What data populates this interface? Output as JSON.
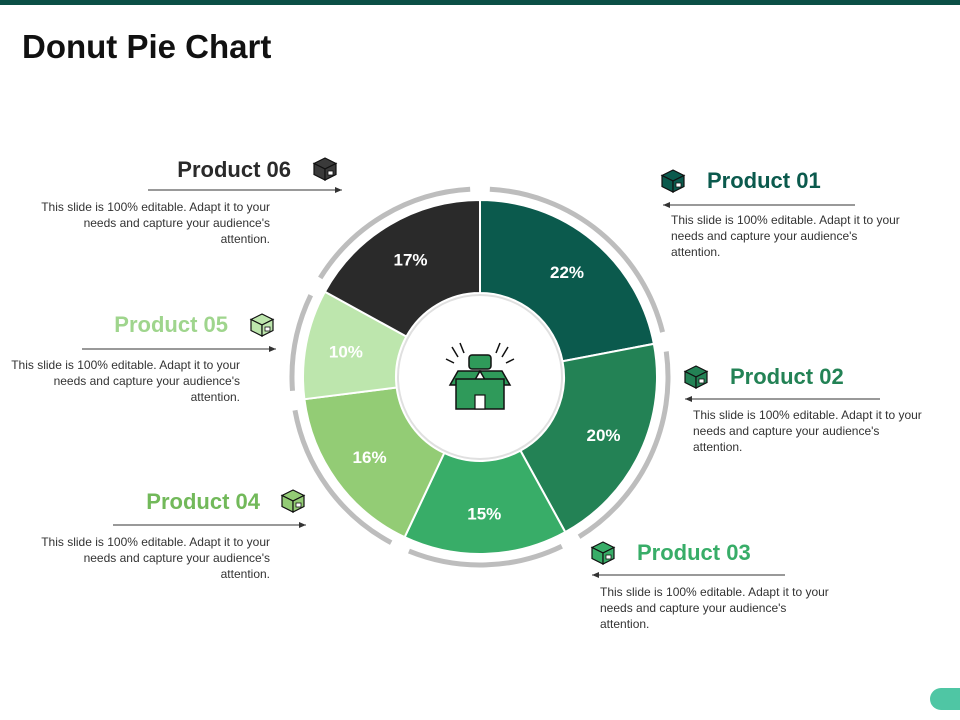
{
  "title": "Donut Pie Chart",
  "colors": {
    "top_bar": "#0b4f46",
    "title_text": "#111111",
    "ring": "#bdbdbd",
    "center_icon": "#2f9a5a"
  },
  "chart_data": {
    "type": "pie",
    "title": "",
    "categories": [
      "Product 01",
      "Product 02",
      "Product 03",
      "Product 04",
      "Product 05",
      "Product 06"
    ],
    "values": [
      22,
      20,
      15,
      16,
      10,
      17
    ],
    "value_labels": [
      "22%",
      "20%",
      "15%",
      "16%",
      "10%",
      "17%"
    ],
    "colors": [
      "#0b5a4d",
      "#238255",
      "#38ad68",
      "#93cc75",
      "#bde6ad",
      "#2a2a2a"
    ],
    "donut": true,
    "center_icon": "open-box-icon"
  },
  "products": [
    {
      "name": "Product 01",
      "color": "#0b5a4d",
      "icon": "cube-icon",
      "description": "This slide is 100% editable. Adapt it to your needs and capture your audience's attention."
    },
    {
      "name": "Product 02",
      "color": "#238255",
      "icon": "cube-icon",
      "description": "This slide is 100% editable. Adapt it to your needs and capture your audience's attention."
    },
    {
      "name": "Product 03",
      "color": "#38ad68",
      "icon": "cube-icon",
      "description": "This slide is 100% editable. Adapt it to your needs and capture your audience's attention."
    },
    {
      "name": "Product 04",
      "color": "#72b95a",
      "icon": "cube-icon",
      "description": "This slide is 100% editable. Adapt it to your needs and capture your audience's attention."
    },
    {
      "name": "Product 05",
      "color": "#9fd58d",
      "icon": "cube-icon",
      "description": "This slide is 100% editable. Adapt it to your needs and capture your audience's attention."
    },
    {
      "name": "Product 06",
      "color": "#2a2a2a",
      "icon": "cube-icon",
      "description": "This slide is 100% editable. Adapt it to your needs and capture your audience's attention."
    }
  ]
}
